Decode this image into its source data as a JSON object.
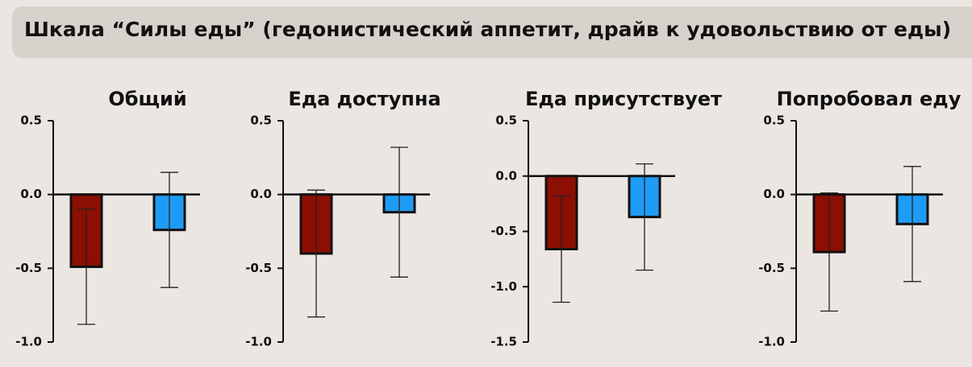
{
  "header": {
    "title": "Шкала “Силы еды” (гедонистический аппетит, драйв к удовольствию от еды)"
  },
  "chart_data": [
    {
      "type": "bar",
      "title": "Общий",
      "categories": [
        null,
        null
      ],
      "values": [
        -0.49,
        -0.24
      ],
      "errors": [
        0.39,
        0.39
      ],
      "colors": [
        "#8b0f02",
        "#1e9cf5"
      ],
      "ylim": [
        -1.0,
        0.5
      ],
      "yticks": [
        0.5,
        {
          "value": 0,
          "label": "0.0"
        },
        -0.5,
        {
          "value": -1,
          "label": "-1.0"
        }
      ]
    },
    {
      "type": "bar",
      "title": "Еда доступна",
      "categories": [
        null,
        null
      ],
      "values": [
        -0.4,
        -0.12
      ],
      "errors": [
        0.43,
        0.44
      ],
      "colors": [
        "#8b0f02",
        "#1e9cf5"
      ],
      "ylim": [
        -1.0,
        0.5
      ],
      "yticks": [
        0.5,
        {
          "value": 0,
          "label": "0.0"
        },
        -0.5,
        {
          "value": -1,
          "label": "-1.0"
        }
      ]
    },
    {
      "type": "bar",
      "title": "Еда присутствует",
      "categories": [
        null,
        null
      ],
      "values": [
        -0.66,
        -0.37
      ],
      "errors": [
        0.48,
        0.48
      ],
      "colors": [
        "#8b0f02",
        "#1e9cf5"
      ],
      "ylim": [
        -1.5,
        0.5
      ],
      "yticks": [
        0.5,
        {
          "value": 0,
          "label": "0.0"
        },
        -0.5,
        {
          "value": -1,
          "label": "-1.0"
        },
        {
          "value": -1.5,
          "label": "-1.5"
        }
      ]
    },
    {
      "type": "bar",
      "title": "Попробовал еду",
      "categories": [
        null,
        null
      ],
      "values": [
        -0.39,
        -0.2
      ],
      "errors": [
        0.4,
        0.39
      ],
      "colors": [
        "#8b0f02",
        "#1e9cf5"
      ],
      "ylim": [
        -1.0,
        0.5
      ],
      "yticks": [
        0.5,
        {
          "value": 0,
          "label": "0.0"
        },
        -0.5,
        {
          "value": -1,
          "label": "-1.0"
        }
      ]
    }
  ]
}
